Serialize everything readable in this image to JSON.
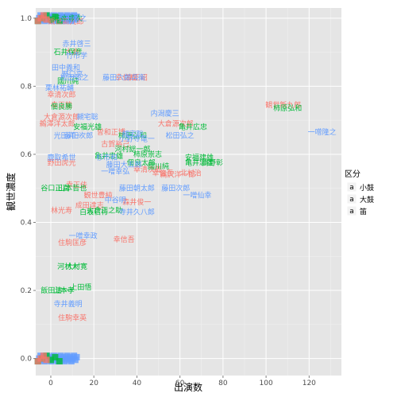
{
  "chart_data": {
    "type": "scatter",
    "xlabel": "出演数",
    "ylabel": "観世濃度",
    "xlim": [
      -7,
      135
    ],
    "ylim": [
      -0.05,
      1.03
    ],
    "x_ticks": [
      0,
      20,
      40,
      60,
      80,
      100,
      120
    ],
    "y_ticks": [
      0.0,
      0.2,
      0.4,
      0.6,
      0.8,
      1.0
    ],
    "x_tick_labels": [
      "0",
      "20",
      "40",
      "60",
      "80",
      "100",
      "120"
    ],
    "y_tick_labels": [
      "0.0",
      "0.2",
      "0.4",
      "0.6",
      "0.8",
      "1.0"
    ],
    "grid": true,
    "legend": {
      "title": "区分",
      "position": "right",
      "entries": [
        {
          "key": "小鼓",
          "color": "#F8766D",
          "glyph": "a"
        },
        {
          "key": "大鼓",
          "color": "#00BA38",
          "glyph": "a"
        },
        {
          "key": "笛",
          "color": "#619CFF",
          "glyph": "a"
        }
      ]
    },
    "series": [
      {
        "name": "小鼓",
        "color": "#F8766D",
        "points": [
          {
            "x": 7,
            "y": 0.99,
            "label": "観世新九郎"
          },
          {
            "x": 10,
            "y": 0.9,
            "label": "大倉"
          },
          {
            "x": 35,
            "y": 0.825,
            "label": "幸信成"
          },
          {
            "x": 40,
            "y": 0.825,
            "label": "幸正昭"
          },
          {
            "x": 5,
            "y": 0.775,
            "label": "幸清次郎"
          },
          {
            "x": 5,
            "y": 0.745,
            "label": "幸正能"
          },
          {
            "x": 5,
            "y": 0.71,
            "label": "大倉源次郎"
          },
          {
            "x": 3,
            "y": 0.69,
            "label": "鵜澤洋太郎"
          },
          {
            "x": 28,
            "y": 0.665,
            "label": "曽和正博"
          },
          {
            "x": 30,
            "y": 0.63,
            "label": "古賀裕己"
          },
          {
            "x": 58,
            "y": 0.69,
            "label": "大倉源次郎"
          },
          {
            "x": 108,
            "y": 0.745,
            "label": "観世新九郎"
          },
          {
            "x": 5,
            "y": 0.575,
            "label": "野田虎光"
          },
          {
            "x": 45,
            "y": 0.555,
            "label": "幸清次郎"
          },
          {
            "x": 52,
            "y": 0.545,
            "label": "幸信吾"
          },
          {
            "x": 59,
            "y": 0.54,
            "label": "鵜沢洋一郎"
          },
          {
            "x": 65,
            "y": 0.545,
            "label": "北村治"
          },
          {
            "x": 12,
            "y": 0.51,
            "label": "幸正佳"
          },
          {
            "x": 22,
            "y": 0.48,
            "label": "観世豊純"
          },
          {
            "x": 18,
            "y": 0.45,
            "label": "成田達志"
          },
          {
            "x": 5,
            "y": 0.435,
            "label": "林光寿"
          },
          {
            "x": 40,
            "y": 0.46,
            "label": "森井俊一"
          },
          {
            "x": 10,
            "y": 0.34,
            "label": "住駒匡彦"
          },
          {
            "x": 34,
            "y": 0.35,
            "label": "幸信吾"
          },
          {
            "x": 10,
            "y": 0.12,
            "label": "住駒幸英"
          }
        ]
      },
      {
        "name": "大鼓",
        "color": "#00BA38",
        "points": [
          {
            "x": 8,
            "y": 1.0,
            "label": "柿本豊次"
          },
          {
            "x": 8,
            "y": 0.9,
            "label": "石井保彦"
          },
          {
            "x": 8,
            "y": 0.815,
            "label": "國川純"
          },
          {
            "x": 5,
            "y": 0.74,
            "label": "佃良勝"
          },
          {
            "x": 17,
            "y": 0.68,
            "label": "安福光雄"
          },
          {
            "x": 38,
            "y": 0.655,
            "label": "柿原弘和"
          },
          {
            "x": 38,
            "y": 0.615,
            "label": "河村総一郎"
          },
          {
            "x": 27,
            "y": 0.595,
            "label": "亀井忠雄"
          },
          {
            "x": 45,
            "y": 0.6,
            "label": "柿原崇志"
          },
          {
            "x": 42,
            "y": 0.575,
            "label": "佃良太郎"
          },
          {
            "x": 50,
            "y": 0.565,
            "label": "國川純"
          },
          {
            "x": 66,
            "y": 0.68,
            "label": "亀井広忠"
          },
          {
            "x": 69,
            "y": 0.59,
            "label": "安福建雄"
          },
          {
            "x": 69,
            "y": 0.575,
            "label": "亀井忠雄"
          },
          {
            "x": 75,
            "y": 0.575,
            "label": "高野彰"
          },
          {
            "x": 110,
            "y": 0.735,
            "label": "柿原弘和"
          },
          {
            "x": 2,
            "y": 0.5,
            "label": "谷口正喜"
          },
          {
            "x": 10,
            "y": 0.5,
            "label": "山本哲也"
          },
          {
            "x": 25,
            "y": 0.435,
            "label": "大倉正之助"
          },
          {
            "x": 20,
            "y": 0.43,
            "label": "白坂信行"
          },
          {
            "x": 8,
            "y": 0.27,
            "label": "河村大"
          },
          {
            "x": 12,
            "y": 0.27,
            "label": "大村寛"
          },
          {
            "x": 14,
            "y": 0.21,
            "label": "上田悟"
          },
          {
            "x": 2,
            "y": 0.2,
            "label": "飯田清一"
          },
          {
            "x": 6,
            "y": 0.2,
            "label": "山本孝"
          }
        ]
      },
      {
        "name": "笛",
        "color": "#619CFF",
        "points": [
          {
            "x": 12,
            "y": 0.925,
            "label": "赤井啓三"
          },
          {
            "x": 12,
            "y": 0.89,
            "label": "竹市学"
          },
          {
            "x": 7,
            "y": 0.855,
            "label": "田中義和"
          },
          {
            "x": 10,
            "y": 0.835,
            "label": "野口亮"
          },
          {
            "x": 11,
            "y": 0.825,
            "label": "松田弘之"
          },
          {
            "x": 4,
            "y": 0.795,
            "label": "栗林祐輔"
          },
          {
            "x": 34,
            "y": 0.825,
            "label": "藤田六郎兵衛"
          },
          {
            "x": 17,
            "y": 0.71,
            "label": "槻宅聡"
          },
          {
            "x": 53,
            "y": 0.72,
            "label": "内潟慶三"
          },
          {
            "x": 38,
            "y": 0.66,
            "label": "槻宅聡"
          },
          {
            "x": 40,
            "y": 0.645,
            "label": "小野寺竜一"
          },
          {
            "x": 8,
            "y": 0.655,
            "label": "光田洋一"
          },
          {
            "x": 13,
            "y": 0.655,
            "label": "藤田次郎"
          },
          {
            "x": 60,
            "y": 0.655,
            "label": "松田弘之"
          },
          {
            "x": 5,
            "y": 0.59,
            "label": "鹿取希世"
          },
          {
            "x": 26,
            "y": 0.59,
            "label": "杉市和"
          },
          {
            "x": 34,
            "y": 0.57,
            "label": "藤田大五郎"
          },
          {
            "x": 30,
            "y": 0.55,
            "label": "一噌幸弘"
          },
          {
            "x": 40,
            "y": 0.5,
            "label": "藤田朝太郎"
          },
          {
            "x": 58,
            "y": 0.5,
            "label": "藤田次郎"
          },
          {
            "x": 68,
            "y": 0.48,
            "label": "一噌仙幸"
          },
          {
            "x": 126,
            "y": 0.665,
            "label": "一噌隆之"
          },
          {
            "x": 30,
            "y": 0.465,
            "label": "中谷明"
          },
          {
            "x": 40,
            "y": 0.43,
            "label": "寺井久八郎"
          },
          {
            "x": 15,
            "y": 0.36,
            "label": "一噌幸政"
          },
          {
            "x": 8,
            "y": 0.16,
            "label": "寺井義明"
          },
          {
            "x": 10,
            "y": 1.0,
            "label": "松田弘之"
          }
        ]
      }
    ],
    "clusters": [
      {
        "series": "笛",
        "y": 1.0,
        "x_min": -6,
        "x_max": 12,
        "count": 30
      },
      {
        "series": "笛",
        "y": 0.0,
        "x_min": -6,
        "x_max": 12,
        "count": 30
      },
      {
        "series": "大鼓",
        "y": 1.0,
        "x_min": -6,
        "x_max": 4,
        "count": 6
      },
      {
        "series": "大鼓",
        "y": 0.0,
        "x_min": -6,
        "x_max": 4,
        "count": 6
      },
      {
        "series": "小鼓",
        "y": 1.0,
        "x_min": -6,
        "x_max": -2,
        "count": 4
      },
      {
        "series": "小鼓",
        "y": 0.0,
        "x_min": -6,
        "x_max": -2,
        "count": 4
      }
    ]
  }
}
